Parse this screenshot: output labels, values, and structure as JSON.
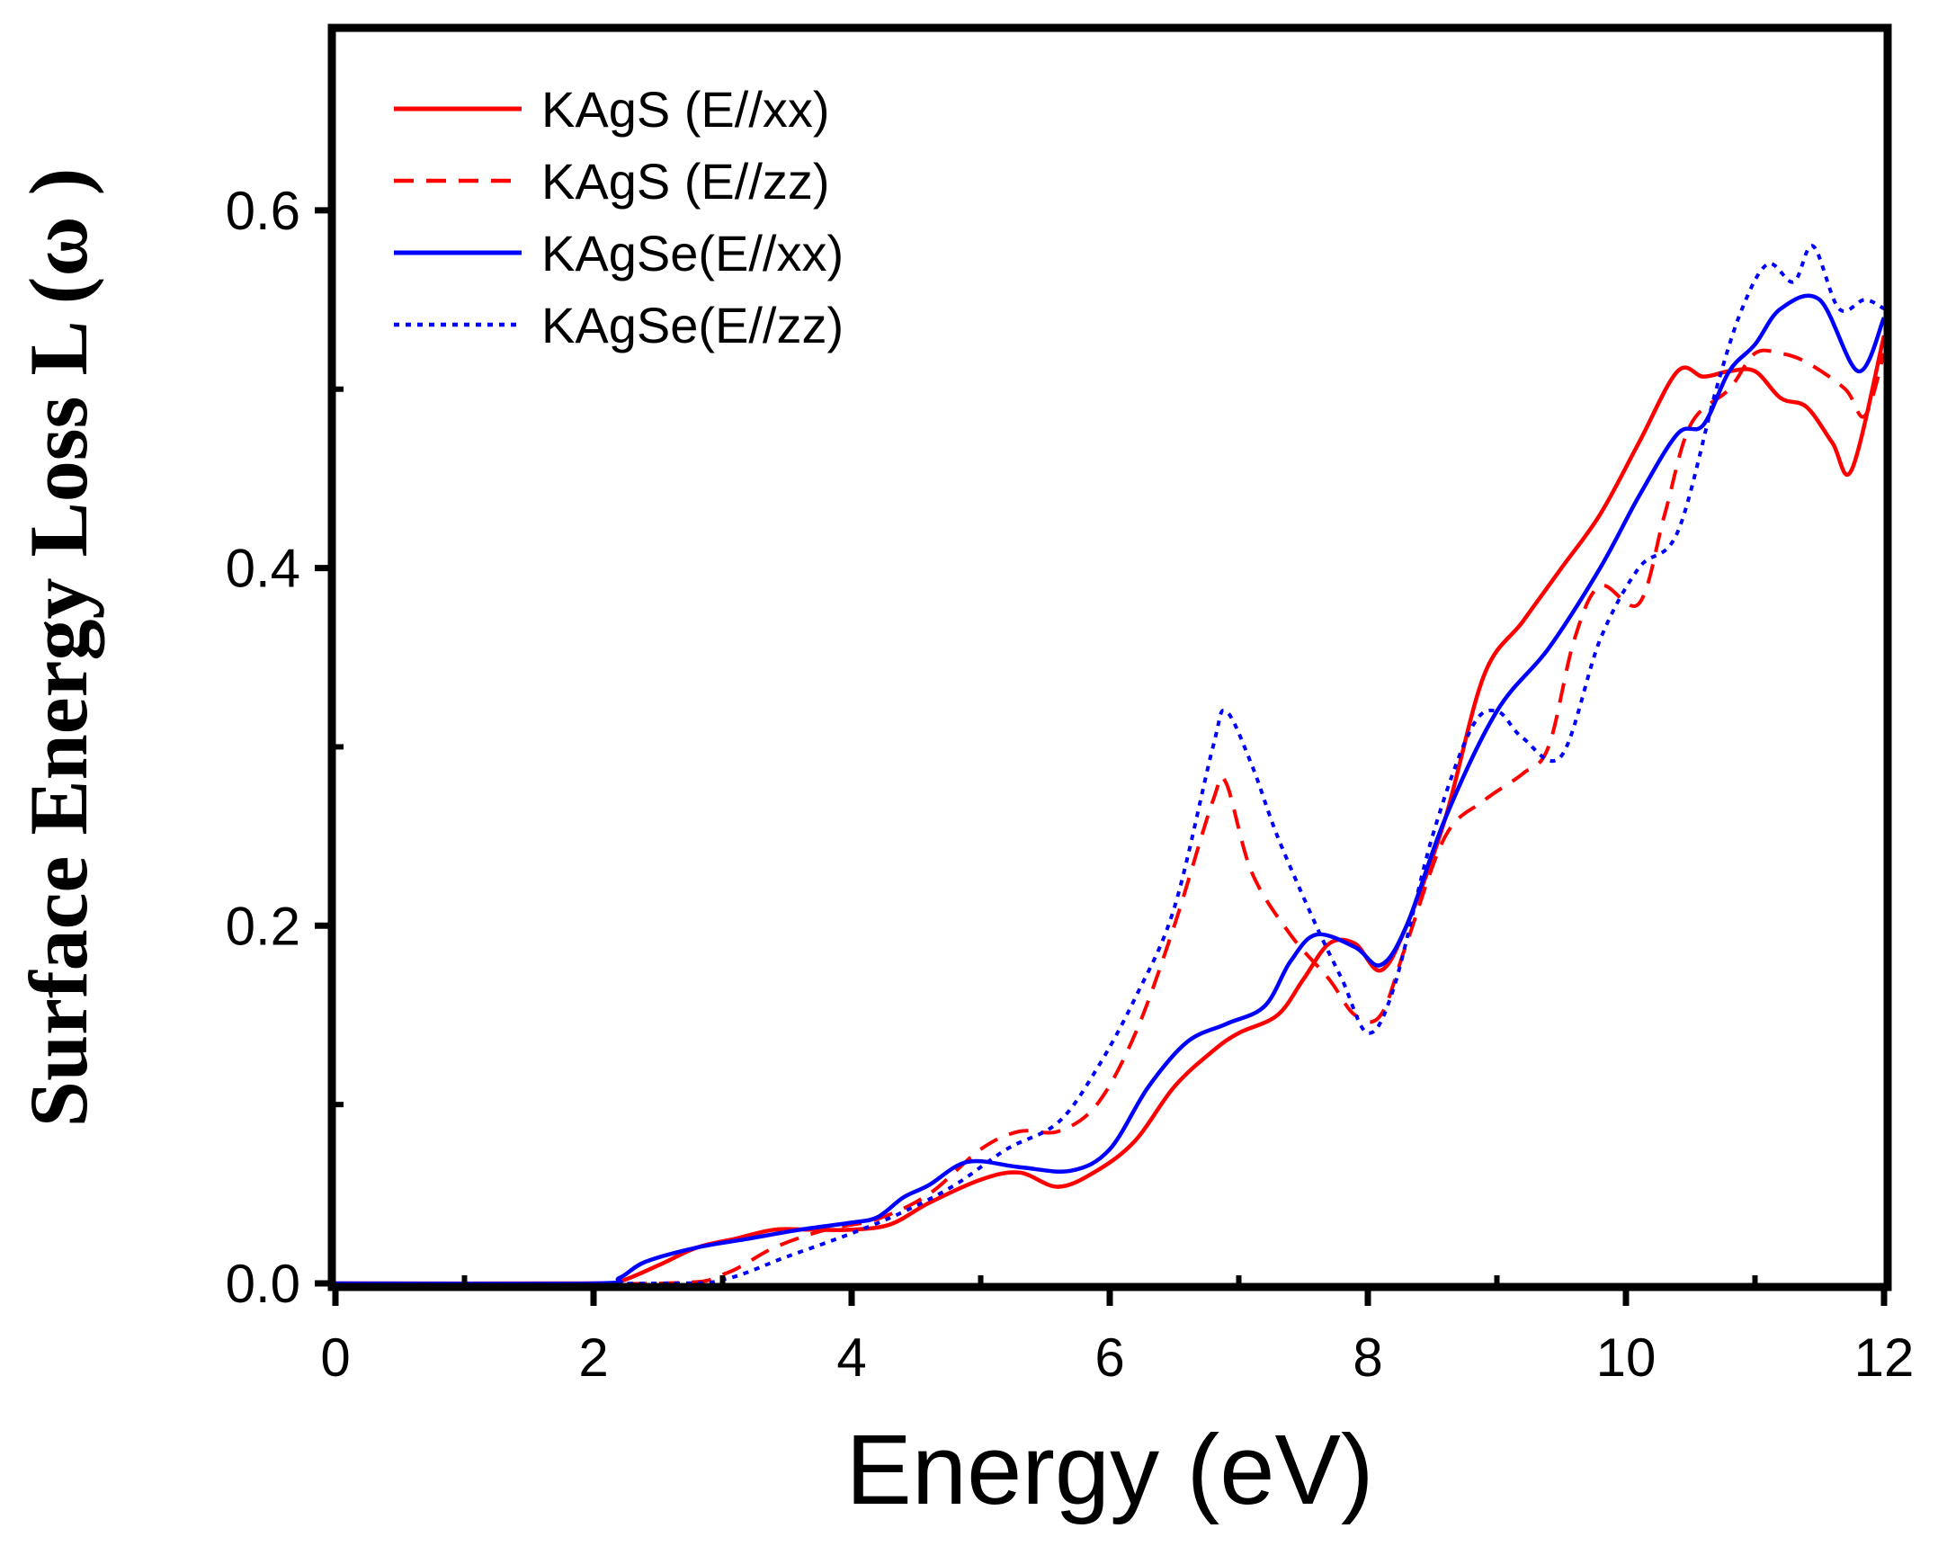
{
  "chart_data": {
    "type": "line",
    "title": "",
    "xlabel": "Energy (eV)",
    "ylabel": "Surface Energy Loss L (ω )",
    "xlim": [
      0,
      12
    ],
    "ylim": [
      0,
      0.7
    ],
    "x_ticks": [
      0,
      2,
      4,
      6,
      8,
      10,
      12
    ],
    "x_tick_labels": [
      "0",
      "2",
      "4",
      "6",
      "8",
      "10",
      "12"
    ],
    "y_ticks": [
      0.0,
      0.2,
      0.4,
      0.6
    ],
    "y_tick_labels": [
      "0.0",
      "0.2",
      "0.4",
      "0.6"
    ],
    "grid": false,
    "legend_position": "top-left",
    "series": [
      {
        "name": "KAgS (E//xx)",
        "color": "#ff0000",
        "style": "solid",
        "x": [
          0,
          2,
          2.2,
          2.5,
          2.8,
          3.1,
          3.4,
          3.7,
          4.0,
          4.3,
          4.6,
          5.0,
          5.3,
          5.6,
          5.9,
          6.2,
          6.5,
          6.8,
          7.0,
          7.3,
          7.5,
          7.7,
          7.9,
          8.1,
          8.3,
          8.6,
          8.9,
          9.2,
          9.5,
          9.8,
          10.1,
          10.4,
          10.6,
          10.8,
          11.0,
          11.2,
          11.4,
          11.6,
          11.75,
          12.0
        ],
        "y": [
          0,
          0,
          0.001,
          0.01,
          0.02,
          0.025,
          0.03,
          0.03,
          0.03,
          0.033,
          0.045,
          0.058,
          0.062,
          0.054,
          0.063,
          0.08,
          0.11,
          0.13,
          0.14,
          0.15,
          0.17,
          0.19,
          0.19,
          0.175,
          0.2,
          0.26,
          0.34,
          0.37,
          0.4,
          0.43,
          0.47,
          0.51,
          0.507,
          0.51,
          0.51,
          0.495,
          0.49,
          0.47,
          0.455,
          0.53
        ]
      },
      {
        "name": "KAgS (E//zz)",
        "color": "#ff0000",
        "style": "dashed",
        "x": [
          0,
          2.5,
          3.0,
          3.4,
          3.8,
          4.2,
          4.6,
          5.0,
          5.3,
          5.6,
          5.9,
          6.2,
          6.5,
          6.8,
          6.9,
          7.1,
          7.4,
          7.7,
          7.9,
          8.1,
          8.3,
          8.6,
          8.9,
          9.2,
          9.4,
          9.6,
          9.8,
          10.1,
          10.3,
          10.5,
          10.8,
          11.0,
          11.2,
          11.4,
          11.7,
          11.85,
          12.0
        ],
        "y": [
          0,
          0,
          0.005,
          0.02,
          0.03,
          0.036,
          0.05,
          0.075,
          0.085,
          0.085,
          0.1,
          0.14,
          0.2,
          0.27,
          0.28,
          0.23,
          0.195,
          0.17,
          0.15,
          0.15,
          0.19,
          0.25,
          0.27,
          0.285,
          0.3,
          0.36,
          0.39,
          0.38,
          0.43,
          0.48,
          0.5,
          0.52,
          0.52,
          0.515,
          0.5,
          0.485,
          0.52
        ]
      },
      {
        "name": "KAgSe(E//xx)",
        "color": "#0000ff",
        "style": "solid",
        "x": [
          0,
          2,
          2.2,
          2.4,
          2.8,
          3.2,
          3.6,
          4.0,
          4.2,
          4.4,
          4.6,
          4.9,
          5.3,
          5.7,
          6.0,
          6.3,
          6.6,
          6.9,
          7.2,
          7.4,
          7.6,
          7.9,
          8.1,
          8.3,
          8.6,
          9.0,
          9.4,
          9.8,
          10.1,
          10.4,
          10.6,
          10.8,
          11.0,
          11.2,
          11.5,
          11.8,
          12.0
        ],
        "y": [
          0,
          0,
          0.003,
          0.012,
          0.02,
          0.025,
          0.03,
          0.034,
          0.037,
          0.048,
          0.055,
          0.068,
          0.065,
          0.063,
          0.075,
          0.11,
          0.135,
          0.145,
          0.155,
          0.18,
          0.195,
          0.188,
          0.178,
          0.2,
          0.26,
          0.32,
          0.355,
          0.4,
          0.44,
          0.475,
          0.48,
          0.51,
          0.525,
          0.545,
          0.55,
          0.51,
          0.54
        ]
      },
      {
        "name": "KAgSe(E//zz)",
        "color": "#0000ff",
        "style": "dotted",
        "x": [
          0,
          2.5,
          3.0,
          3.5,
          4.0,
          4.4,
          4.8,
          5.2,
          5.6,
          5.9,
          6.2,
          6.5,
          6.8,
          6.9,
          7.1,
          7.3,
          7.6,
          7.8,
          8.0,
          8.2,
          8.5,
          8.8,
          9.0,
          9.2,
          9.5,
          9.8,
          10.1,
          10.4,
          10.7,
          10.9,
          11.1,
          11.3,
          11.45,
          11.65,
          11.85,
          12.0
        ],
        "y": [
          0,
          0,
          0.002,
          0.015,
          0.028,
          0.04,
          0.055,
          0.075,
          0.09,
          0.12,
          0.16,
          0.21,
          0.3,
          0.32,
          0.29,
          0.25,
          0.2,
          0.17,
          0.14,
          0.165,
          0.25,
          0.31,
          0.32,
          0.305,
          0.295,
          0.36,
          0.4,
          0.42,
          0.5,
          0.545,
          0.57,
          0.56,
          0.58,
          0.545,
          0.55,
          0.545
        ]
      }
    ]
  }
}
